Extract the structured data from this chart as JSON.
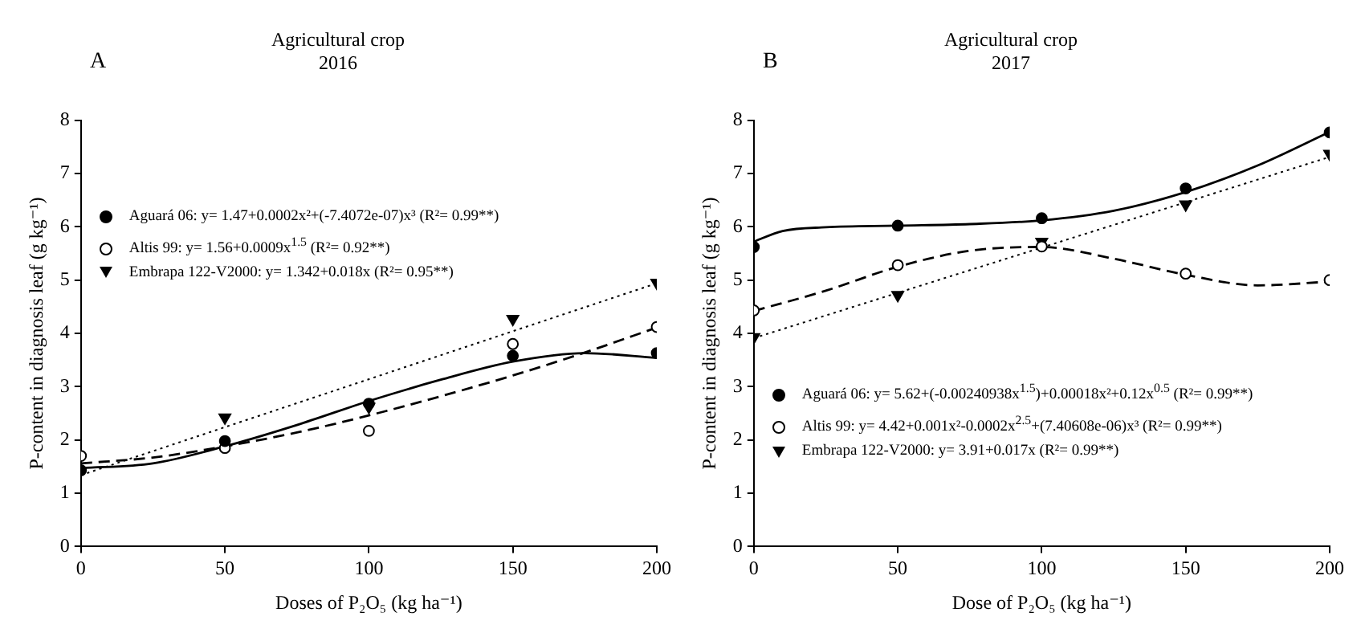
{
  "chart_data": [
    {
      "type": "scatter",
      "title": "Agricultural crop",
      "subtitle": "2016",
      "annotations": [
        "A"
      ],
      "xlabel": "Doses of P₂O₅ (kg ha⁻¹)",
      "ylabel": "P-content in diagnosis leaf (g kg⁻¹)",
      "x": [
        0,
        50,
        100,
        150,
        200
      ],
      "xlim": [
        0,
        200
      ],
      "xticks": [
        0,
        50,
        100,
        150,
        200
      ],
      "ylim": [
        0,
        8
      ],
      "yticks": [
        0,
        1,
        2,
        3,
        4,
        5,
        6,
        7,
        8
      ],
      "grid": false,
      "legend": "top left",
      "series": [
        {
          "name": "Aguará 06: y= 1.47+0.0002x²+(-7.4072e-07)x³ (R²= 0.99**)",
          "type": "scatter",
          "marker": "circle",
          "color": "#000000",
          "values": [
            1.43,
            1.98,
            2.68,
            3.58,
            3.63
          ]
        },
        {
          "name": "Altis 99: y= 1.56+0.0009x$^{1.5}$ (R²= 0.92**)",
          "type": "scatter",
          "marker": "circle",
          "color": "#ffffff",
          "values": [
            1.7,
            1.85,
            2.17,
            3.8,
            4.12
          ]
        },
        {
          "name": "Embrapa 122-V2000: y= 1.342+0.018x (R²= 0.95**)",
          "type": "scatter",
          "marker": "triangle",
          "color": "#000000",
          "values": [
            null,
            2.42,
            2.62,
            4.27,
            4.95
          ]
        },
        {
          "type": "line",
          "marker": "none",
          "line_style": "solid",
          "color": "#000000",
          "x": [
            0,
            25,
            50,
            75,
            100,
            125,
            150,
            175,
            200
          ],
          "values": [
            1.47,
            1.56,
            1.88,
            2.28,
            2.73,
            3.13,
            3.47,
            3.63,
            3.54
          ]
        },
        {
          "type": "line",
          "marker": "none",
          "line_style": "dashed",
          "color": "#000000",
          "x": [
            0,
            25,
            50,
            75,
            100,
            125,
            150,
            175,
            200
          ],
          "values": [
            1.56,
            1.67,
            1.88,
            2.14,
            2.46,
            2.82,
            3.21,
            3.64,
            4.11
          ]
        },
        {
          "type": "line",
          "marker": "none",
          "line_style": "dotted",
          "color": "#000000",
          "x": [
            0,
            200
          ],
          "values": [
            1.34,
            4.94
          ]
        }
      ]
    },
    {
      "type": "scatter",
      "title": "Agricultural crop",
      "subtitle": "2017",
      "annotations": [
        "B"
      ],
      "xlabel": "Dose of P₂O₅ (kg ha⁻¹)",
      "ylabel": "P-content in diagnosis leaf (g kg⁻¹)",
      "x": [
        0,
        50,
        100,
        150,
        200
      ],
      "xlim": [
        0,
        200
      ],
      "xticks": [
        0,
        50,
        100,
        150,
        200
      ],
      "ylim": [
        0,
        8
      ],
      "yticks": [
        0,
        1,
        2,
        3,
        4,
        5,
        6,
        7,
        8
      ],
      "grid": false,
      "legend": "bottom left",
      "series": [
        {
          "name": "Aguará 06: y= 5.62+(-0.00240938x$^{1.5}$)+0.00018x²+0.12x$^{0.5}$ (R²= 0.99**)",
          "type": "scatter",
          "marker": "circle",
          "color": "#000000",
          "values": [
            5.62,
            6.02,
            6.16,
            6.72,
            7.77
          ]
        },
        {
          "name": "Altis 99: y= 4.42+0.001x²-0.0002x$^{2.5}$+(7.40608e-06)x³ (R²= 0.99**)",
          "type": "scatter",
          "marker": "circle",
          "color": "#ffffff",
          "values": [
            4.43,
            5.28,
            5.63,
            5.12,
            5.0
          ]
        },
        {
          "name": "Embrapa 122-V2000: y= 3.91+0.017x (R²= 0.99**)",
          "type": "scatter",
          "marker": "triangle",
          "color": "#000000",
          "values": [
            3.93,
            4.72,
            5.72,
            6.42,
            7.37
          ]
        },
        {
          "type": "line",
          "marker": "none",
          "line_style": "solid",
          "color": "#000000",
          "x": [
            0,
            10,
            25,
            50,
            75,
            100,
            125,
            150,
            175,
            200
          ],
          "values": [
            5.72,
            5.92,
            5.99,
            6.02,
            6.05,
            6.12,
            6.3,
            6.65,
            7.15,
            7.78
          ]
        },
        {
          "type": "line",
          "marker": "none",
          "line_style": "dashed",
          "color": "#000000",
          "x": [
            0,
            25,
            50,
            75,
            100,
            125,
            150,
            175,
            200
          ],
          "values": [
            4.42,
            4.8,
            5.25,
            5.55,
            5.62,
            5.4,
            5.1,
            4.9,
            4.97
          ]
        },
        {
          "type": "line",
          "marker": "none",
          "line_style": "dotted",
          "color": "#000000",
          "x": [
            0,
            200
          ],
          "values": [
            3.91,
            7.31
          ]
        }
      ]
    }
  ]
}
